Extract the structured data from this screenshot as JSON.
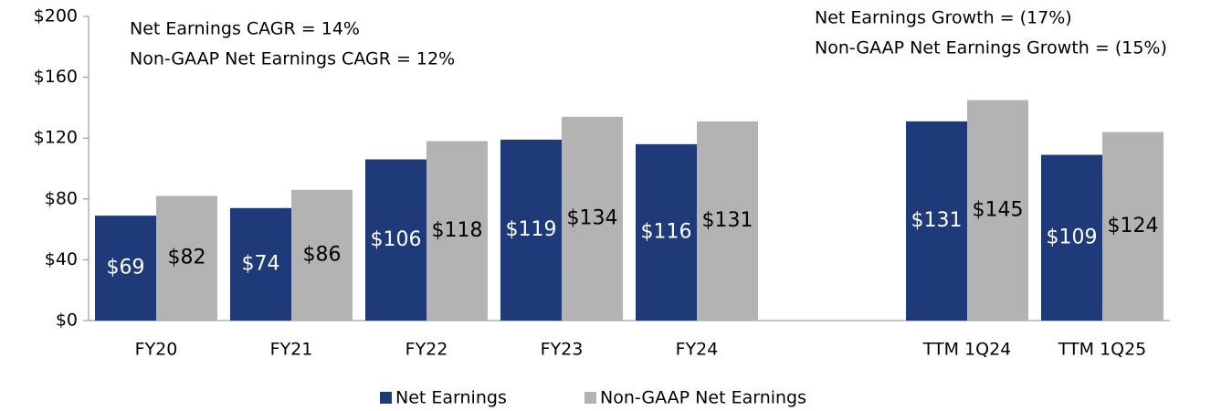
{
  "chart_data": {
    "type": "bar",
    "categories": [
      "FY20",
      "FY21",
      "FY22",
      "FY23",
      "FY24",
      null,
      "TTM 1Q24",
      "TTM 1Q25"
    ],
    "series": [
      {
        "name": "Net Earnings",
        "color": "#1f3a78",
        "values": [
          69,
          74,
          106,
          119,
          116,
          null,
          131,
          109
        ],
        "value_labels": [
          "$69",
          "$74",
          "$106",
          "$119",
          "$116",
          null,
          "$131",
          "$109"
        ]
      },
      {
        "name": "Non-GAAP Net Earnings",
        "color": "#b3b3b3",
        "values": [
          82,
          86,
          118,
          134,
          131,
          null,
          145,
          124
        ],
        "value_labels": [
          "$82",
          "$86",
          "$118",
          "$134",
          "$131",
          null,
          "$145",
          "$124"
        ]
      }
    ],
    "ylim": [
      0,
      200
    ],
    "yticks": [
      {
        "value": 0,
        "label": "$0"
      },
      {
        "value": 40,
        "label": "$40"
      },
      {
        "value": 80,
        "label": "$80"
      },
      {
        "value": 120,
        "label": "$120"
      },
      {
        "value": 160,
        "label": "$160"
      },
      {
        "value": 200,
        "label": "$200"
      }
    ],
    "annotations": [
      "Net Earnings CAGR = 14%",
      "Non-GAAP Net Earnings CAGR = 12%",
      "Net Earnings Growth = (17%)",
      "Non-GAAP Net Earnings Growth = (15%)"
    ],
    "legend": "bottom"
  }
}
